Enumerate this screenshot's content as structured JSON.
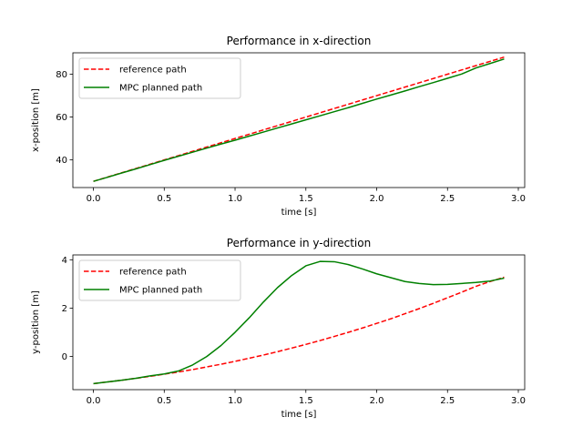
{
  "chart_data": [
    {
      "type": "line",
      "title": "Performance in x-direction",
      "xlabel": "time [s]",
      "ylabel": "x-position [m]",
      "xlim": [
        -0.145,
        3.045
      ],
      "ylim": [
        27.1,
        90.0
      ],
      "xticks": [
        0.0,
        0.5,
        1.0,
        1.5,
        2.0,
        2.5,
        3.0
      ],
      "xtick_labels": [
        "0.0",
        "0.5",
        "1.0",
        "1.5",
        "2.0",
        "2.5",
        "3.0"
      ],
      "yticks": [
        40,
        60,
        80
      ],
      "ytick_labels": [
        "40",
        "60",
        "80"
      ],
      "grid": false,
      "legend_position": "upper-left",
      "x": [
        0.0,
        0.1,
        0.2,
        0.3,
        0.4,
        0.5,
        0.6,
        0.7,
        0.8,
        0.9,
        1.0,
        1.1,
        1.2,
        1.3,
        1.4,
        1.5,
        1.6,
        1.7,
        1.8,
        1.9,
        2.0,
        2.1,
        2.2,
        2.3,
        2.4,
        2.5,
        2.6,
        2.7,
        2.8,
        2.9
      ],
      "series": [
        {
          "name": "reference path",
          "color": "#ff0000",
          "style": "dashed",
          "values": [
            30.0,
            32.0,
            34.0,
            36.0,
            38.0,
            40.0,
            42.0,
            44.0,
            46.0,
            48.0,
            50.0,
            52.0,
            54.0,
            56.0,
            58.0,
            60.0,
            62.0,
            64.0,
            66.0,
            68.0,
            70.0,
            72.0,
            74.0,
            76.0,
            78.0,
            80.0,
            82.0,
            84.0,
            86.0,
            88.0
          ]
        },
        {
          "name": "MPC planned path",
          "color": "#008000",
          "style": "solid",
          "values": [
            30.0,
            31.9,
            33.9,
            35.8,
            37.8,
            39.8,
            41.7,
            43.6,
            45.5,
            47.4,
            49.2,
            51.1,
            53.0,
            54.9,
            56.8,
            58.7,
            60.6,
            62.5,
            64.4,
            66.4,
            68.4,
            70.3,
            72.2,
            74.2,
            76.1,
            78.1,
            80.1,
            82.9,
            85.0,
            87.1
          ]
        }
      ]
    },
    {
      "type": "line",
      "title": "Performance in y-direction",
      "xlabel": "time [s]",
      "ylabel": "y-position [m]",
      "xlim": [
        -0.145,
        3.045
      ],
      "ylim": [
        -1.37,
        4.2
      ],
      "xticks": [
        0.0,
        0.5,
        1.0,
        1.5,
        2.0,
        2.5,
        3.0
      ],
      "xtick_labels": [
        "0.0",
        "0.5",
        "1.0",
        "1.5",
        "2.0",
        "2.5",
        "3.0"
      ],
      "yticks": [
        0,
        2,
        4
      ],
      "ytick_labels": [
        "0",
        "2",
        "4"
      ],
      "grid": false,
      "legend_position": "upper-left",
      "x": [
        0.0,
        0.1,
        0.2,
        0.3,
        0.4,
        0.5,
        0.6,
        0.7,
        0.8,
        0.9,
        1.0,
        1.1,
        1.2,
        1.3,
        1.4,
        1.5,
        1.6,
        1.7,
        1.8,
        1.9,
        2.0,
        2.1,
        2.2,
        2.3,
        2.4,
        2.5,
        2.6,
        2.7,
        2.8,
        2.9
      ],
      "series": [
        {
          "name": "reference path",
          "color": "#ff0000",
          "style": "dashed",
          "values": [
            -1.12,
            -1.05,
            -0.98,
            -0.9,
            -0.82,
            -0.73,
            -0.64,
            -0.54,
            -0.43,
            -0.32,
            -0.2,
            -0.07,
            0.06,
            0.2,
            0.35,
            0.5,
            0.66,
            0.83,
            1.0,
            1.18,
            1.37,
            1.56,
            1.77,
            1.98,
            2.2,
            2.43,
            2.66,
            2.9,
            3.1,
            3.28
          ]
        },
        {
          "name": "MPC planned path",
          "color": "#008000",
          "style": "solid",
          "values": [
            -1.12,
            -1.05,
            -0.98,
            -0.9,
            -0.8,
            -0.72,
            -0.6,
            -0.35,
            0.0,
            0.45,
            1.0,
            1.6,
            2.25,
            2.85,
            3.35,
            3.75,
            3.93,
            3.92,
            3.8,
            3.62,
            3.42,
            3.26,
            3.1,
            3.02,
            2.97,
            2.98,
            3.02,
            3.06,
            3.12,
            3.24
          ]
        }
      ]
    }
  ]
}
